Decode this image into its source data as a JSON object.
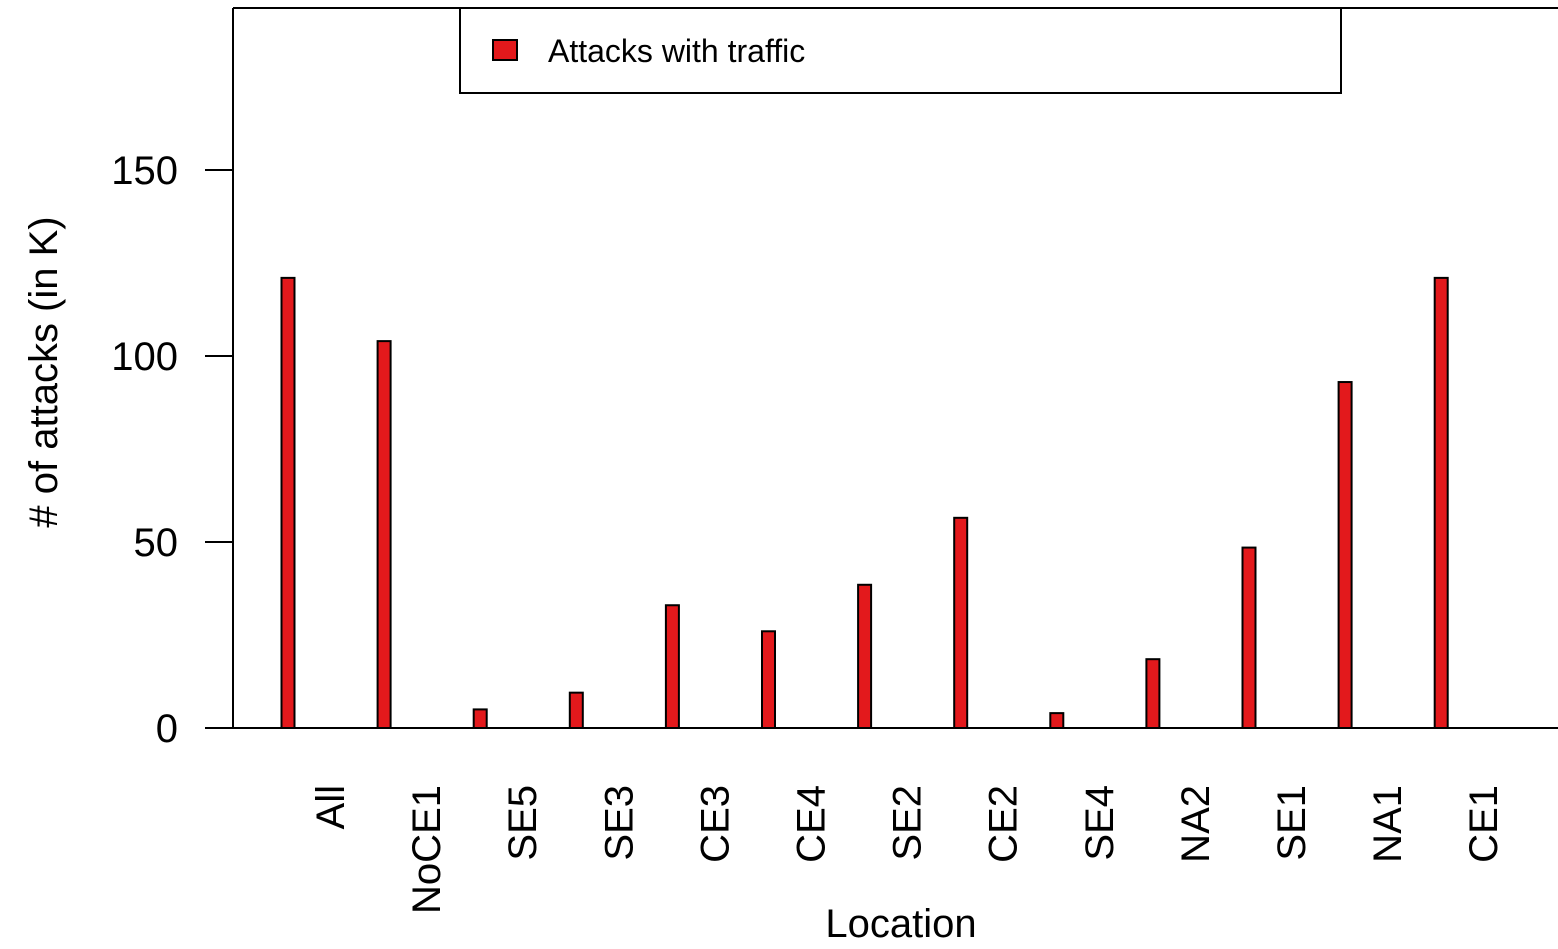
{
  "chart_data": {
    "type": "bar",
    "categories": [
      "All",
      "NoCE1",
      "SE5",
      "SE3",
      "CE3",
      "CE4",
      "SE2",
      "CE2",
      "SE4",
      "NA2",
      "SE1",
      "NA1",
      "CE1"
    ],
    "series": [
      {
        "name": "Attacks with traffic",
        "color": "#e3191c",
        "values": [
          121,
          104,
          5,
          9.5,
          33,
          26,
          38.5,
          56.5,
          4,
          18.5,
          48.5,
          93,
          121
        ]
      }
    ],
    "xlabel": "Location",
    "ylabel": "# of attacks (in K)",
    "ylim": [
      0,
      190
    ],
    "yticks": [
      0,
      50,
      100,
      150
    ],
    "y_tick_labels": [
      "0",
      "50",
      "100",
      "150"
    ],
    "grid": false,
    "legend": {
      "position": "top",
      "entries": [
        "Attacks with traffic"
      ]
    }
  }
}
